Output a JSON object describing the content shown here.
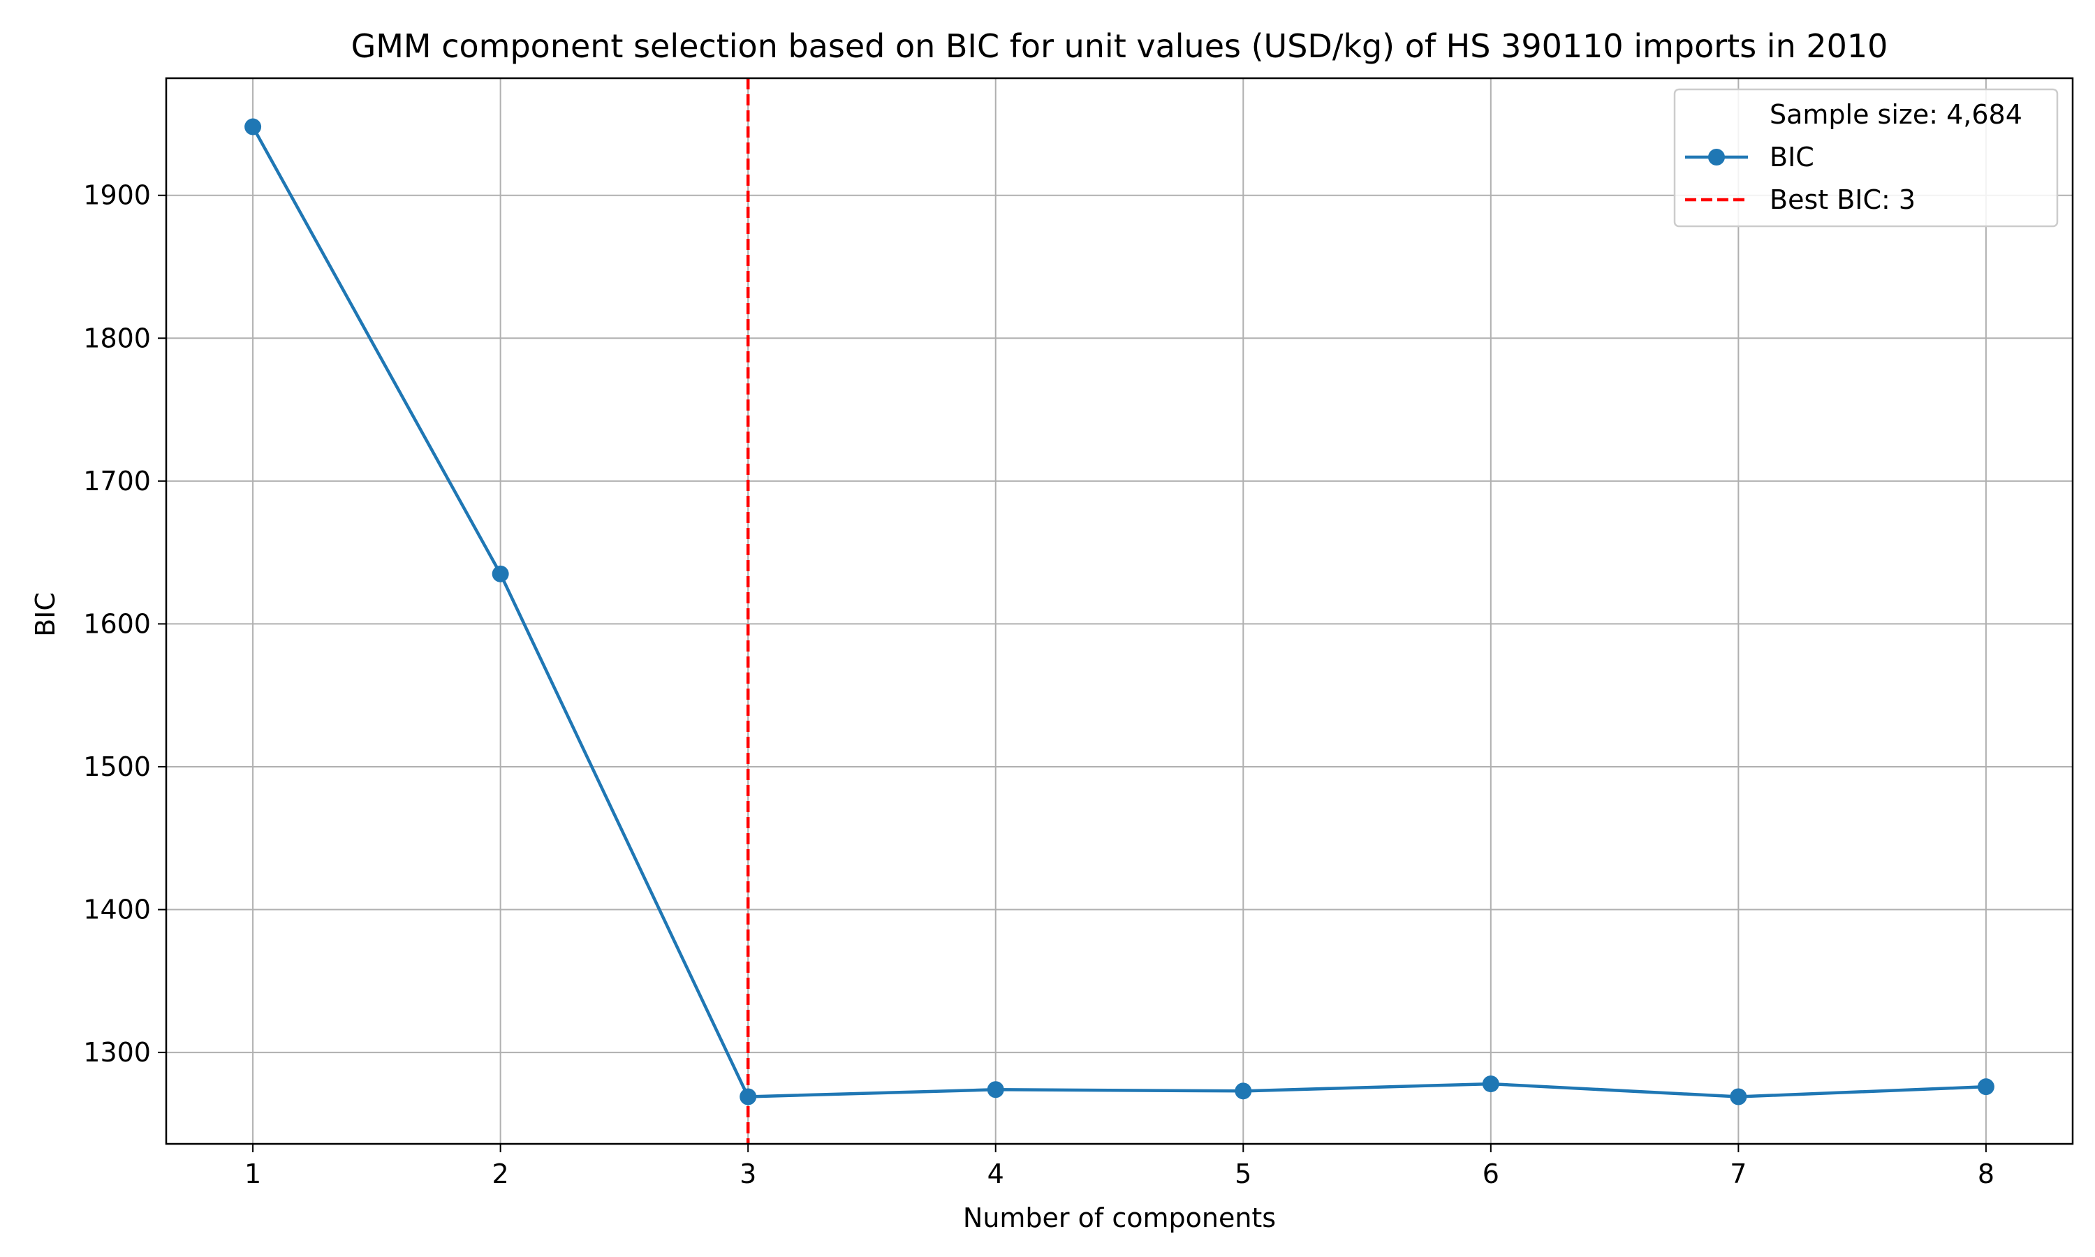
{
  "chart_data": {
    "type": "line",
    "title": "GMM component selection based on BIC for unit values (USD/kg) of HS 390110 imports in 2010",
    "xlabel": "Number of components",
    "ylabel": "BIC",
    "x": [
      1,
      2,
      3,
      4,
      5,
      6,
      7,
      8
    ],
    "xticks": [
      "1",
      "2",
      "3",
      "4",
      "5",
      "6",
      "7",
      "8"
    ],
    "xlim": [
      0.65,
      8.35
    ],
    "ylim": [
      1236,
      1982
    ],
    "yticks": [
      1300,
      1400,
      1500,
      1600,
      1700,
      1800,
      1900
    ],
    "grid": true,
    "series": [
      {
        "name": "BIC",
        "values": [
          1948,
          1635,
          1269,
          1274,
          1273,
          1278,
          1269,
          1276
        ],
        "color": "#1f77b4",
        "marker": "circle"
      }
    ],
    "best_line": {
      "x": 3,
      "label": "Best BIC: 3",
      "color": "#ff0000",
      "style": "dashed"
    },
    "legend": {
      "position": "top-right",
      "entries": [
        "Sample size: 4,684",
        "BIC",
        "Best BIC: 3"
      ]
    }
  }
}
